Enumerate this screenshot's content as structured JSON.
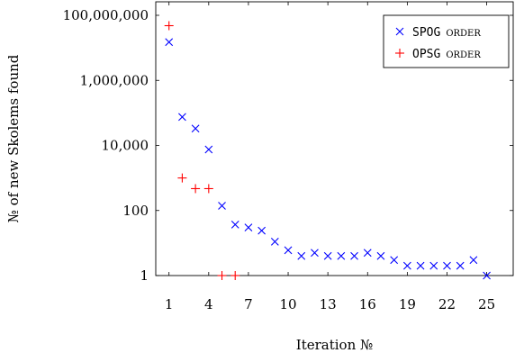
{
  "chart_data": {
    "type": "scatter",
    "xlabel": "Iteration №",
    "ylabel": "№ of new Skolems found",
    "xlim": [
      0,
      27
    ],
    "ylim": [
      1,
      100000000
    ],
    "yscale": "log",
    "grid": false,
    "legend_position": "top-right",
    "xticks": [
      1,
      4,
      7,
      10,
      13,
      16,
      19,
      22,
      25
    ],
    "yticks": [
      {
        "value": 1,
        "label": "1"
      },
      {
        "value": 100,
        "label": "100"
      },
      {
        "value": 10000,
        "label": "10,000"
      },
      {
        "value": 1000000,
        "label": "1,000,000"
      },
      {
        "value": 100000000,
        "label": "100,000,000"
      }
    ],
    "series": [
      {
        "name_code": "SPOG",
        "name_suffix": "order",
        "marker": "x",
        "color": "#0000ff",
        "points": [
          [
            1,
            15000000
          ],
          [
            2,
            75000
          ],
          [
            3,
            33000
          ],
          [
            4,
            7500
          ],
          [
            5,
            140
          ],
          [
            6,
            37
          ],
          [
            7,
            30
          ],
          [
            8,
            24
          ],
          [
            9,
            11
          ],
          [
            10,
            6
          ],
          [
            11,
            4
          ],
          [
            12,
            5
          ],
          [
            13,
            4
          ],
          [
            14,
            4
          ],
          [
            15,
            4
          ],
          [
            16,
            5
          ],
          [
            17,
            4
          ],
          [
            18,
            3
          ],
          [
            19,
            2
          ],
          [
            20,
            2
          ],
          [
            21,
            2
          ],
          [
            22,
            2
          ],
          [
            23,
            2
          ],
          [
            24,
            3
          ],
          [
            25,
            1
          ]
        ]
      },
      {
        "name_code": "OPSG",
        "name_suffix": "order",
        "marker": "+",
        "color": "#ff0000",
        "points": [
          [
            1,
            48000000
          ],
          [
            2,
            1000
          ],
          [
            3,
            470
          ],
          [
            4,
            470
          ],
          [
            5,
            1
          ],
          [
            6,
            1
          ]
        ]
      }
    ]
  }
}
